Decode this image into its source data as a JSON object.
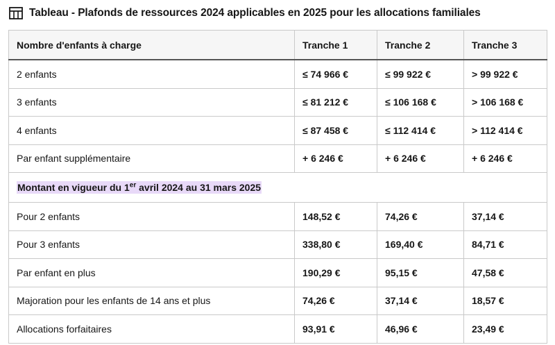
{
  "caption": {
    "title": "Tableau - Plafonds de ressources 2024 applicables en 2025 pour les allocations familiales"
  },
  "table": {
    "headers": [
      "Nombre d'enfants à charge",
      "Tranche 1",
      "Tranche 2",
      "Tranche 3"
    ],
    "ceilings": [
      [
        "2 enfants",
        "≤ 74 966 €",
        "≤ 99 922 €",
        "> 99 922 €"
      ],
      [
        "3 enfants",
        "≤ 81 212 €",
        "≤ 106 168 €",
        "> 106 168 €"
      ],
      [
        "4 enfants",
        "≤ 87 458 €",
        "≤ 112 414 €",
        "> 112 414 €"
      ],
      [
        "Par enfant supplémentaire",
        "+ 6 246 €",
        "+ 6 246 €",
        "+ 6 246 €"
      ]
    ],
    "section": {
      "prefix": "Montant en vigueur du 1",
      "sup": "er",
      "suffix": " avril 2024 au 31 mars 2025"
    },
    "amounts": [
      [
        "Pour 2 enfants",
        "148,52 €",
        "74,26 €",
        "37,14 €"
      ],
      [
        "Pour 3 enfants",
        "338,80 €",
        "169,40 €",
        "84,71 €"
      ],
      [
        "Par enfant en plus",
        "190,29 €",
        "95,15 €",
        "47,58 €"
      ],
      [
        "Majoration pour les enfants de 14 ans et plus",
        "74,26 €",
        "37,14 €",
        "18,57 €"
      ],
      [
        "Allocations forfaitaires",
        "93,91 €",
        "46,96 €",
        "23,49 €"
      ]
    ]
  }
}
